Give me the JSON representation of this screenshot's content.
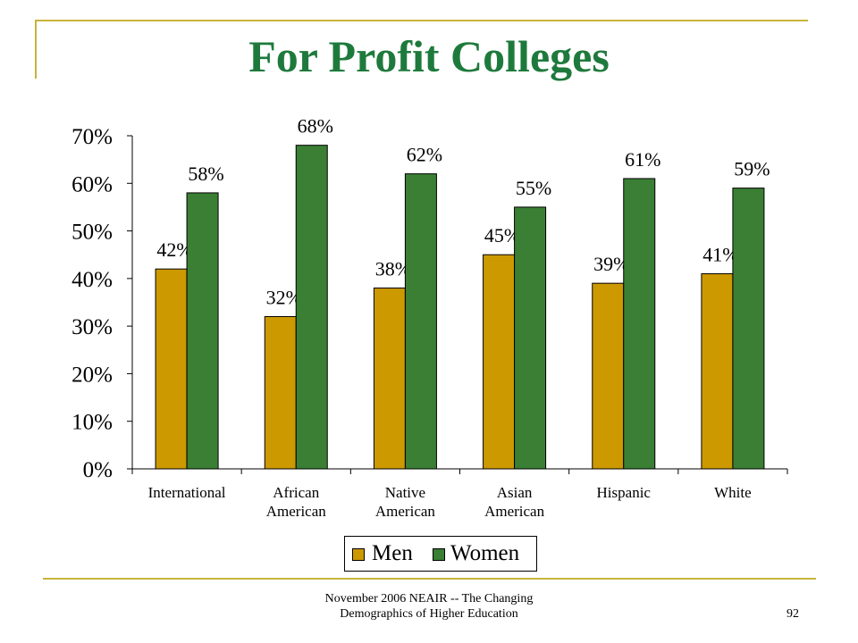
{
  "slide": {
    "title": "For Profit Colleges",
    "footer_line1": "November 2006 NEAIR -- The Changing",
    "footer_line2": "Demographics of  Higher Education",
    "page_number": "92"
  },
  "chart_data": {
    "type": "bar",
    "title": "For Profit Colleges",
    "categories": [
      [
        "International"
      ],
      [
        "African",
        "American"
      ],
      [
        "Native",
        "American"
      ],
      [
        "Asian",
        "American"
      ],
      [
        "Hispanic"
      ],
      [
        "White"
      ]
    ],
    "series": [
      {
        "name": "Men",
        "values": [
          42,
          32,
          38,
          45,
          39,
          41
        ],
        "labels": [
          "42%",
          "32%",
          "38%",
          "45%",
          "39%",
          "41%"
        ],
        "color": "#cc9900"
      },
      {
        "name": "Women",
        "values": [
          58,
          68,
          62,
          55,
          61,
          59
        ],
        "labels": [
          "58%",
          "68%",
          "62%",
          "55%",
          "61%",
          "59%"
        ],
        "color": "#3a7f34"
      }
    ],
    "ylim": [
      0,
      70
    ],
    "yticks": [
      0,
      10,
      20,
      30,
      40,
      50,
      60,
      70
    ],
    "ytick_labels": [
      "0%",
      "10%",
      "20%",
      "30%",
      "40%",
      "50%",
      "60%",
      "70%"
    ],
    "xlabel": "",
    "ylabel": "",
    "grid": false,
    "legend_position": "bottom-center"
  }
}
